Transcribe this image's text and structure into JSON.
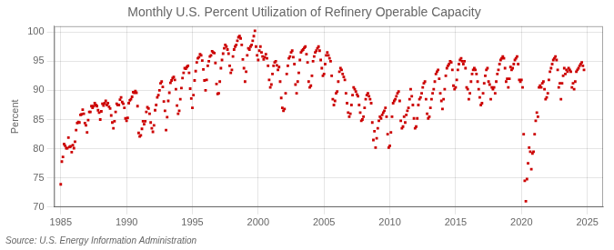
{
  "chart_data": {
    "type": "scatter",
    "title": "Monthly U.S. Percent Utilization of Refinery Operable Capacity",
    "y_label": "Percent",
    "annotation": "Source: U.S. Energy Information Administration",
    "color": "#cc0000",
    "marker": "square",
    "grid": true,
    "xlim": [
      1984.5,
      2026.2
    ],
    "ylim": [
      70,
      101
    ],
    "xticks": [
      1985,
      1990,
      1995,
      2000,
      2005,
      2010,
      2015,
      2020,
      2025
    ],
    "yticks": [
      70,
      75,
      80,
      85,
      90,
      95,
      100
    ],
    "x": [
      1985.0,
      1985.083,
      1985.167,
      1985.25,
      1985.333,
      1985.417,
      1985.5,
      1985.583,
      1985.667,
      1985.75,
      1985.833,
      1985.917,
      1986.0,
      1986.083,
      1986.167,
      1986.25,
      1986.333,
      1986.417,
      1986.5,
      1986.583,
      1986.667,
      1986.75,
      1986.833,
      1986.917,
      1987.0,
      1987.083,
      1987.167,
      1987.25,
      1987.333,
      1987.417,
      1987.5,
      1987.583,
      1987.667,
      1987.75,
      1987.833,
      1987.917,
      1988.0,
      1988.083,
      1988.167,
      1988.25,
      1988.333,
      1988.417,
      1988.5,
      1988.583,
      1988.667,
      1988.75,
      1988.833,
      1988.917,
      1989.0,
      1989.083,
      1989.167,
      1989.25,
      1989.333,
      1989.417,
      1989.5,
      1989.583,
      1989.667,
      1989.75,
      1989.833,
      1989.917,
      1990.0,
      1990.083,
      1990.167,
      1990.25,
      1990.333,
      1990.417,
      1990.5,
      1990.583,
      1990.667,
      1990.75,
      1990.833,
      1990.917,
      1991.0,
      1991.083,
      1991.167,
      1991.25,
      1991.333,
      1991.417,
      1991.5,
      1991.583,
      1991.667,
      1991.75,
      1991.833,
      1991.917,
      1992.0,
      1992.083,
      1992.167,
      1992.25,
      1992.333,
      1992.417,
      1992.5,
      1992.583,
      1992.667,
      1992.75,
      1992.833,
      1992.917,
      1993.0,
      1993.083,
      1993.167,
      1993.25,
      1993.333,
      1993.417,
      1993.5,
      1993.583,
      1993.667,
      1993.75,
      1993.833,
      1993.917,
      1994.0,
      1994.083,
      1994.167,
      1994.25,
      1994.333,
      1994.417,
      1994.5,
      1994.583,
      1994.667,
      1994.75,
      1994.833,
      1994.917,
      1995.0,
      1995.083,
      1995.167,
      1995.25,
      1995.333,
      1995.417,
      1995.5,
      1995.583,
      1995.667,
      1995.75,
      1995.833,
      1995.917,
      1996.0,
      1996.083,
      1996.167,
      1996.25,
      1996.333,
      1996.417,
      1996.5,
      1996.583,
      1996.667,
      1996.75,
      1996.833,
      1996.917,
      1997.0,
      1997.083,
      1997.167,
      1997.25,
      1997.333,
      1997.417,
      1997.5,
      1997.583,
      1997.667,
      1997.75,
      1997.833,
      1997.917,
      1998.0,
      1998.083,
      1998.167,
      1998.25,
      1998.333,
      1998.417,
      1998.5,
      1998.583,
      1998.667,
      1998.75,
      1998.833,
      1998.917,
      1999.0,
      1999.083,
      1999.167,
      1999.25,
      1999.333,
      1999.417,
      1999.5,
      1999.583,
      1999.667,
      1999.75,
      1999.833,
      1999.917,
      2000.0,
      2000.083,
      2000.167,
      2000.25,
      2000.333,
      2000.417,
      2000.5,
      2000.583,
      2000.667,
      2000.75,
      2000.833,
      2000.917,
      2001.0,
      2001.083,
      2001.167,
      2001.25,
      2001.333,
      2001.417,
      2001.5,
      2001.583,
      2001.667,
      2001.75,
      2001.833,
      2001.917,
      2002.0,
      2002.083,
      2002.167,
      2002.25,
      2002.333,
      2002.417,
      2002.5,
      2002.583,
      2002.667,
      2002.75,
      2002.833,
      2002.917,
      2003.0,
      2003.083,
      2003.167,
      2003.25,
      2003.333,
      2003.417,
      2003.5,
      2003.583,
      2003.667,
      2003.75,
      2003.833,
      2003.917,
      2004.0,
      2004.083,
      2004.167,
      2004.25,
      2004.333,
      2004.417,
      2004.5,
      2004.583,
      2004.667,
      2004.75,
      2004.833,
      2004.917,
      2005.0,
      2005.083,
      2005.167,
      2005.25,
      2005.333,
      2005.417,
      2005.5,
      2005.583,
      2005.667,
      2005.75,
      2005.833,
      2005.917,
      2006.0,
      2006.083,
      2006.167,
      2006.25,
      2006.333,
      2006.417,
      2006.5,
      2006.583,
      2006.667,
      2006.75,
      2006.833,
      2006.917,
      2007.0,
      2007.083,
      2007.167,
      2007.25,
      2007.333,
      2007.417,
      2007.5,
      2007.583,
      2007.667,
      2007.75,
      2007.833,
      2007.917,
      2008.0,
      2008.083,
      2008.167,
      2008.25,
      2008.333,
      2008.417,
      2008.5,
      2008.583,
      2008.667,
      2008.75,
      2008.833,
      2008.917,
      2009.0,
      2009.083,
      2009.167,
      2009.25,
      2009.333,
      2009.417,
      2009.5,
      2009.583,
      2009.667,
      2009.75,
      2009.833,
      2009.917,
      2010.0,
      2010.083,
      2010.167,
      2010.25,
      2010.333,
      2010.417,
      2010.5,
      2010.583,
      2010.667,
      2010.75,
      2010.833,
      2010.917,
      2011.0,
      2011.083,
      2011.167,
      2011.25,
      2011.333,
      2011.417,
      2011.5,
      2011.583,
      2011.667,
      2011.75,
      2011.833,
      2011.917,
      2012.0,
      2012.083,
      2012.167,
      2012.25,
      2012.333,
      2012.417,
      2012.5,
      2012.583,
      2012.667,
      2012.75,
      2012.833,
      2012.917,
      2013.0,
      2013.083,
      2013.167,
      2013.25,
      2013.333,
      2013.417,
      2013.5,
      2013.583,
      2013.667,
      2013.75,
      2013.833,
      2013.917,
      2014.0,
      2014.083,
      2014.167,
      2014.25,
      2014.333,
      2014.417,
      2014.5,
      2014.583,
      2014.667,
      2014.75,
      2014.833,
      2014.917,
      2015.0,
      2015.083,
      2015.167,
      2015.25,
      2015.333,
      2015.417,
      2015.5,
      2015.583,
      2015.667,
      2015.75,
      2015.833,
      2015.917,
      2016.0,
      2016.083,
      2016.167,
      2016.25,
      2016.333,
      2016.417,
      2016.5,
      2016.583,
      2016.667,
      2016.75,
      2016.833,
      2016.917,
      2017.0,
      2017.083,
      2017.167,
      2017.25,
      2017.333,
      2017.417,
      2017.5,
      2017.583,
      2017.667,
      2017.75,
      2017.833,
      2017.917,
      2018.0,
      2018.083,
      2018.167,
      2018.25,
      2018.333,
      2018.417,
      2018.5,
      2018.583,
      2018.667,
      2018.75,
      2018.833,
      2018.917,
      2019.0,
      2019.083,
      2019.167,
      2019.25,
      2019.333,
      2019.417,
      2019.5,
      2019.583,
      2019.667,
      2019.75,
      2019.833,
      2019.917,
      2020.0,
      2020.083,
      2020.167,
      2020.25,
      2020.333,
      2020.417,
      2020.5,
      2020.583,
      2020.667,
      2020.75,
      2020.833,
      2020.917,
      2021.0,
      2021.083,
      2021.167,
      2021.25,
      2021.333,
      2021.417,
      2021.5,
      2021.583,
      2021.667,
      2021.75,
      2021.833,
      2021.917,
      2022.0,
      2022.083,
      2022.167,
      2022.25,
      2022.333,
      2022.417,
      2022.5,
      2022.583,
      2022.667,
      2022.75,
      2022.833,
      2022.917,
      2023.0,
      2023.083,
      2023.167,
      2023.25,
      2023.333,
      2023.417,
      2023.5,
      2023.583,
      2023.667,
      2023.75,
      2023.833,
      2023.917,
      2024.0,
      2024.083,
      2024.167,
      2024.25,
      2024.333,
      2024.417,
      2024.5,
      2024.583,
      2024.667,
      2024.75
    ],
    "values": [
      73.9,
      77.8,
      78.6,
      80.8,
      80.5,
      80.1,
      80.1,
      81.9,
      80.3,
      80.4,
      79.4,
      80.6,
      80.1,
      81.2,
      83.2,
      84.4,
      84.6,
      84.5,
      85.8,
      85.9,
      86.7,
      86.0,
      84.4,
      84.0,
      82.8,
      84.9,
      86.3,
      86.3,
      87.3,
      87.0,
      87.3,
      87.8,
      87.5,
      87.3,
      86.6,
      86.2,
      85.0,
      86.4,
      87.7,
      87.4,
      87.8,
      88.2,
      87.5,
      87.8,
      87.2,
      86.9,
      85.7,
      84.5,
      83.5,
      84.7,
      86.3,
      87.7,
      87.5,
      87.5,
      88.4,
      88.8,
      88.0,
      87.7,
      87.0,
      85.2,
      84.8,
      85.3,
      87.8,
      88.3,
      88.5,
      88.9,
      89.7,
      89.6,
      89.9,
      89.6,
      87.3,
      82.7,
      82.1,
      82.3,
      83.4,
      84.7,
      84.2,
      84.7,
      86.3,
      87.1,
      86.9,
      86.0,
      84.5,
      83.5,
      82.9,
      84.0,
      86.6,
      87.5,
      88.8,
      89.2,
      90.0,
      91.2,
      91.5,
      90.6,
      88.1,
      86.5,
      83.2,
      85.4,
      88.2,
      89.6,
      91.3,
      91.7,
      92.1,
      92.3,
      91.8,
      90.2,
      87.4,
      86.0,
      86.5,
      88.5,
      90.4,
      92.1,
      93.0,
      93.8,
      93.7,
      94.0,
      94.2,
      93.0,
      90.3,
      88.6,
      87.0,
      89.2,
      91.7,
      93.3,
      94.8,
      95.5,
      95.7,
      96.2,
      96.0,
      95.1,
      93.6,
      91.7,
      90.0,
      91.8,
      94.2,
      95.0,
      95.8,
      96.0,
      96.7,
      96.5,
      96.4,
      94.7,
      91.1,
      89.4,
      89.5,
      91.5,
      93.8,
      95.2,
      96.3,
      97.2,
      97.8,
      97.5,
      97.0,
      96.3,
      94.2,
      93.0,
      93.5,
      95.8,
      97.0,
      97.5,
      97.8,
      98.5,
      99.1,
      99.3,
      98.9,
      97.8,
      95.3,
      93.8,
      91.5,
      93.2,
      96.0,
      97.2,
      97.0,
      97.5,
      97.8,
      98.5,
      99.3,
      100.2,
      97.5,
      96.0,
      95.2,
      96.8,
      97.5,
      96.5,
      95.8,
      95.3,
      95.7,
      96.2,
      95.5,
      94.2,
      91.8,
      90.5,
      91.0,
      92.8,
      94.2,
      94.8,
      95.0,
      94.3,
      93.5,
      94.0,
      91.5,
      88.7,
      87.0,
      86.5,
      86.8,
      89.5,
      92.8,
      94.2,
      95.5,
      95.8,
      96.5,
      96.8,
      95.7,
      94.5,
      91.0,
      89.5,
      91.5,
      93.0,
      95.2,
      96.5,
      96.8,
      97.0,
      97.3,
      97.5,
      96.2,
      94.8,
      91.5,
      90.5,
      90.8,
      92.5,
      95.0,
      95.8,
      96.5,
      96.8,
      97.2,
      97.5,
      96.8,
      95.2,
      93.8,
      92.5,
      92.8,
      94.5,
      96.0,
      96.5,
      96.0,
      95.5,
      95.0,
      92.5,
      88.5,
      87.5,
      88.2,
      89.5,
      89.8,
      91.5,
      93.2,
      93.8,
      93.5,
      92.8,
      92.3,
      91.8,
      89.5,
      87.8,
      86.2,
      85.5,
      86.0,
      87.5,
      89.2,
      90.5,
      90.2,
      89.8,
      89.3,
      89.0,
      87.5,
      86.2,
      84.8,
      85.0,
      85.5,
      87.0,
      88.5,
      89.2,
      89.5,
      89.0,
      88.5,
      87.8,
      84.5,
      81.5,
      83.0,
      80.2,
      81.8,
      83.5,
      84.8,
      85.5,
      85.2,
      85.8,
      86.2,
      86.5,
      87.0,
      85.5,
      82.5,
      80.2,
      80.5,
      82.8,
      85.5,
      87.8,
      88.2,
      88.5,
      89.0,
      89.5,
      89.8,
      88.2,
      84.8,
      83.5,
      83.8,
      85.5,
      84.5,
      85.8,
      86.5,
      87.0,
      88.5,
      90.2,
      89.0,
      87.5,
      85.2,
      83.5,
      83.8,
      85.2,
      87.5,
      88.5,
      88.8,
      89.5,
      90.5,
      91.2,
      91.5,
      88.5,
      86.0,
      85.2,
      85.5,
      87.0,
      88.5,
      89.5,
      90.2,
      91.5,
      92.8,
      93.2,
      93.5,
      92.0,
      89.5,
      88.2,
      86.8,
      88.5,
      90.2,
      92.5,
      93.8,
      94.2,
      94.5,
      95.0,
      94.8,
      93.5,
      90.8,
      90.2,
      90.5,
      91.8,
      93.5,
      94.5,
      95.2,
      95.5,
      95.0,
      94.5,
      95.0,
      93.8,
      90.5,
      90.2,
      88.5,
      89.5,
      91.5,
      92.8,
      93.5,
      93.8,
      93.5,
      92.8,
      91.5,
      90.2,
      88.8,
      87.5,
      87.8,
      89.5,
      91.2,
      92.5,
      93.5,
      93.8,
      91.5,
      91.0,
      88.5,
      90.5,
      90.2,
      90.5,
      89.5,
      91.5,
      92.8,
      93.5,
      94.5,
      95.2,
      95.5,
      95.8,
      95.5,
      93.8,
      91.5,
      92.0,
      90.5,
      92.0,
      94.0,
      93.5,
      93.8,
      94.5,
      95.2,
      95.5,
      95.8,
      94.5,
      91.8,
      91.5,
      91.8,
      90.5,
      82.5,
      74.5,
      71.0,
      74.8,
      77.5,
      80.2,
      79.5,
      76.5,
      79.2,
      79.5,
      82.5,
      84.8,
      86.2,
      85.5,
      90.5,
      90.8,
      90.5,
      91.2,
      91.5,
      90.2,
      88.5,
      88.8,
      89.5,
      91.8,
      93.2,
      93.8,
      94.5,
      95.2,
      95.5,
      95.8,
      95.2,
      93.5,
      90.5,
      91.2,
      88.5,
      91.2,
      92.5,
      93.8,
      92.8,
      93.5,
      93.2,
      93.8,
      93.5,
      93.2,
      90.5,
      91.2,
      90.2,
      91.5,
      93.2,
      93.5,
      93.8,
      94.2,
      94.5,
      94.8,
      94.2,
      93.5
    ]
  }
}
